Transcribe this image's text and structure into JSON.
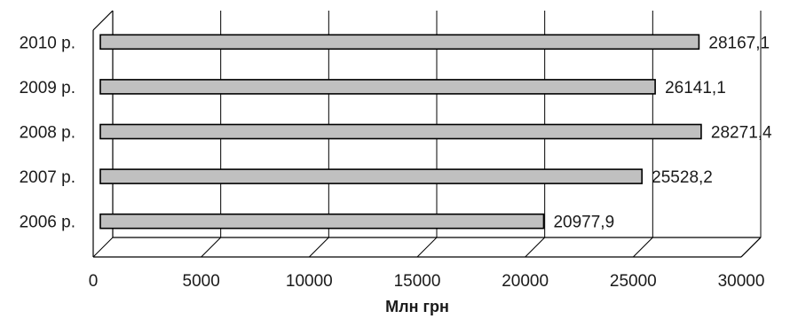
{
  "chart_data": {
    "type": "bar",
    "orientation": "horizontal",
    "categories": [
      "2010 р.",
      "2009 р.",
      "2008 р.",
      "2007 р.",
      "2006 р."
    ],
    "values": [
      28167.1,
      26141.1,
      28271.4,
      25528.2,
      20977.9
    ],
    "value_labels": [
      "28167,1",
      "26141,1",
      "28271,4",
      "25528,2",
      "20977,9"
    ],
    "xlabel": "Млн грн",
    "xlim": [
      0,
      30000
    ],
    "xticks": [
      0,
      5000,
      10000,
      15000,
      20000,
      25000,
      30000
    ],
    "xtick_labels": [
      "0",
      "5000",
      "10000",
      "15000",
      "20000",
      "25000",
      "30000"
    ],
    "grid": "vertical",
    "style": "3d",
    "bar_color": "#c0c0c0"
  }
}
